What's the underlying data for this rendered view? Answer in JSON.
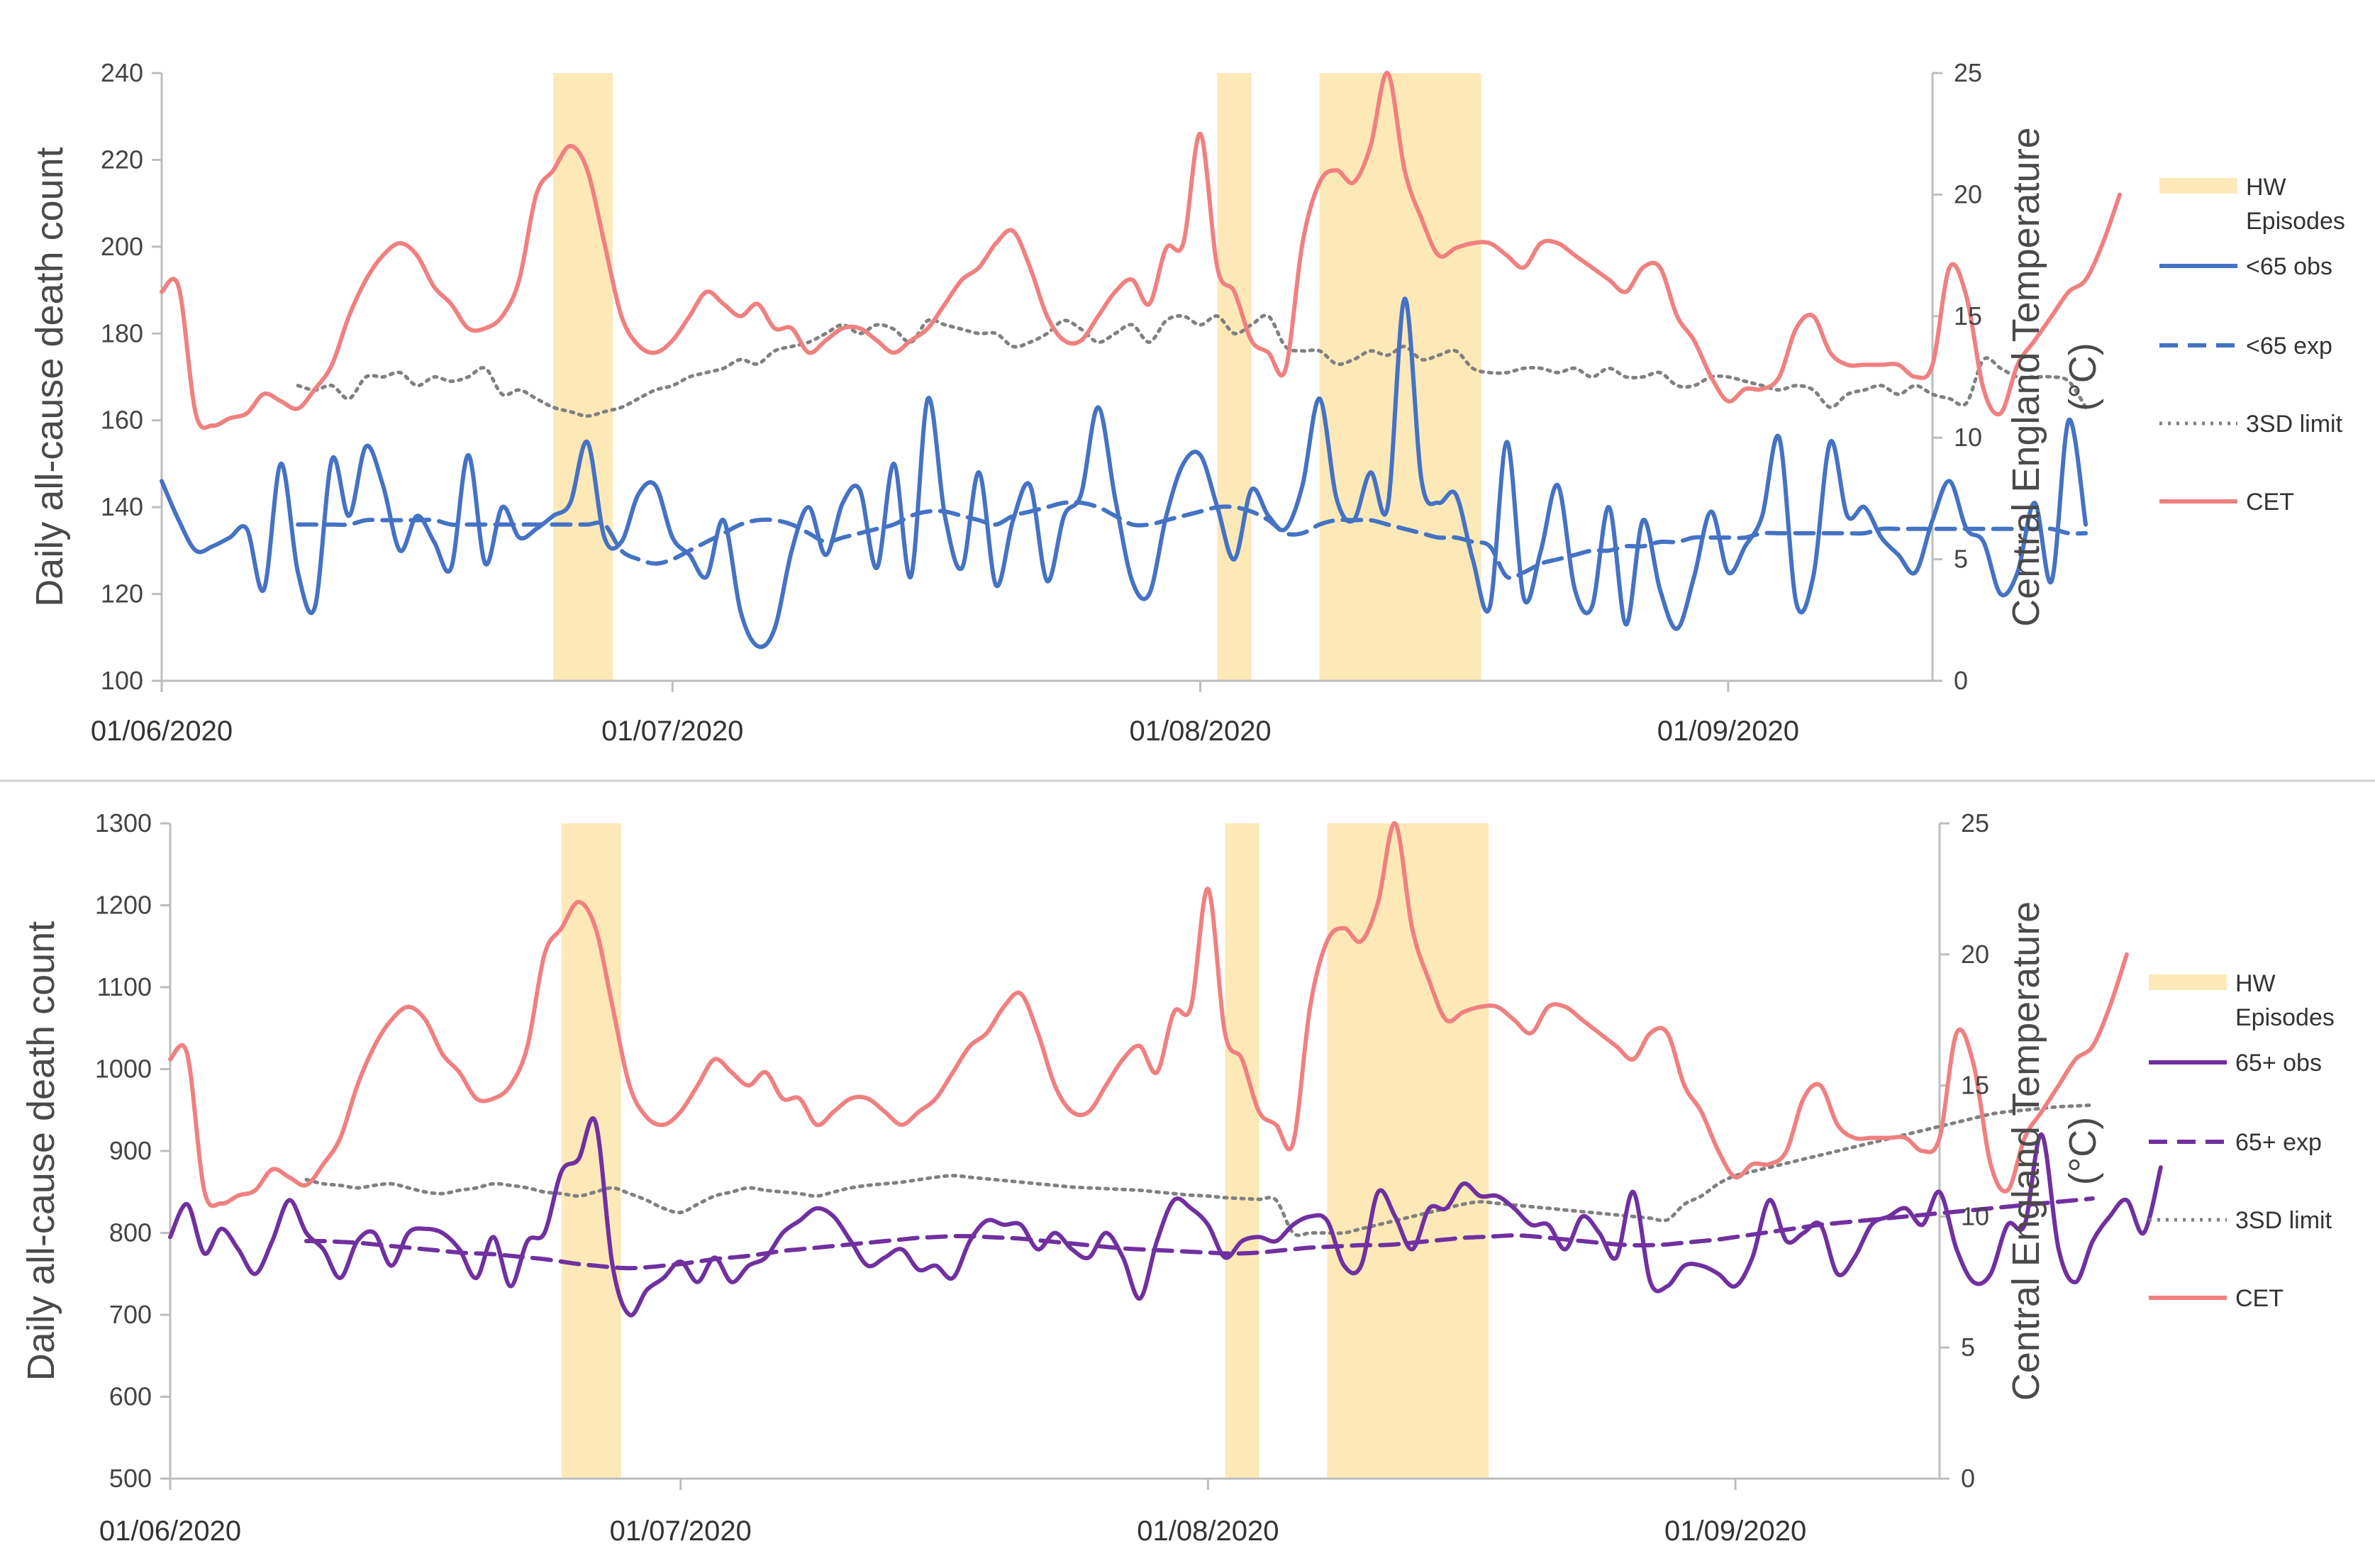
{
  "chart_data": [
    {
      "type": "line",
      "title": "",
      "x_date_range": [
        "01/06/2020",
        "13/09/2020"
      ],
      "x_tick_labels": [
        "01/06/2020",
        "01/07/2020",
        "01/08/2020",
        "01/09/2020"
      ],
      "ylabel": "Daily all-cause death count",
      "y2label": "Central England Temperature (°C)",
      "ylim": [
        100,
        240
      ],
      "yticks": [
        "100",
        "120",
        "140",
        "160",
        "180",
        "200",
        "220",
        "240"
      ],
      "y2lim": [
        0,
        25
      ],
      "y2ticks": [
        "0",
        "5",
        "10",
        "15",
        "20",
        "25"
      ],
      "hw_episodes": [
        [
          23,
          26.5
        ],
        [
          62,
          64
        ],
        [
          68,
          77.5
        ]
      ],
      "series": [
        {
          "name": "<65 obs",
          "axis": "left",
          "color": "#4472c4",
          "style": "solid",
          "values": [
            146,
            137,
            130,
            131,
            133,
            135,
            121,
            150,
            125,
            117,
            151,
            138,
            154,
            145,
            130,
            138,
            132,
            126,
            152,
            127,
            140,
            133,
            135,
            138,
            141,
            155,
            133,
            132,
            143,
            145,
            133,
            129,
            124,
            137,
            116,
            108,
            112,
            130,
            140,
            129,
            141,
            144,
            126,
            150,
            124,
            165,
            138,
            126,
            148,
            122,
            137,
            145,
            123,
            138,
            143,
            163,
            142,
            123,
            120,
            138,
            150,
            152,
            140,
            128,
            144,
            138,
            135,
            145,
            165,
            142,
            137,
            148,
            140,
            188,
            146,
            141,
            143,
            128,
            117,
            155,
            119,
            130,
            145,
            121,
            117,
            140,
            113,
            137,
            121,
            112,
            124,
            139,
            125,
            131,
            138,
            156,
            118,
            124,
            155,
            138,
            140,
            133,
            129,
            125,
            137,
            146,
            135,
            132,
            120,
            125,
            141,
            123,
            160,
            136
          ]
        },
        {
          "name": "<65 exp",
          "axis": "left",
          "color": "#4472c4",
          "style": "dashed",
          "values": [
            null,
            null,
            null,
            null,
            null,
            null,
            null,
            null,
            136,
            136,
            136,
            136,
            137,
            137,
            137,
            137,
            137,
            136,
            136,
            136,
            136,
            136,
            136,
            136,
            136,
            136,
            136,
            130,
            128,
            127,
            128,
            130,
            132,
            134,
            136,
            137,
            137,
            136,
            134,
            132,
            133,
            134,
            135,
            136,
            138,
            139,
            139,
            138,
            137,
            136,
            138,
            139,
            140,
            141,
            141,
            140,
            138,
            136,
            136,
            137,
            138,
            139,
            140,
            140,
            139,
            137,
            134,
            134,
            136,
            137,
            137,
            137,
            136,
            135,
            134,
            133,
            133,
            132,
            131,
            124,
            125,
            127,
            128,
            129,
            130,
            130,
            131,
            131,
            132,
            132,
            133,
            133,
            133,
            133,
            134,
            134,
            134,
            134,
            134,
            134,
            134,
            135,
            135,
            135,
            135,
            135,
            135,
            135,
            135,
            135,
            135,
            135,
            134,
            134
          ]
        },
        {
          "name": "3SD limit",
          "axis": "left",
          "color": "#808080",
          "style": "dotted",
          "values": [
            null,
            null,
            null,
            null,
            null,
            null,
            null,
            null,
            168,
            167,
            168,
            165,
            170,
            170,
            171,
            168,
            170,
            169,
            170,
            172,
            166,
            167,
            165,
            163,
            162,
            161,
            162,
            163,
            165,
            167,
            168,
            170,
            171,
            172,
            174,
            173,
            176,
            177,
            178,
            180,
            182,
            180,
            182,
            181,
            178,
            183,
            182,
            181,
            180,
            180,
            177,
            178,
            180,
            183,
            181,
            178,
            180,
            182,
            178,
            183,
            184,
            182,
            184,
            180,
            182,
            184,
            177,
            176,
            176,
            173,
            174,
            176,
            175,
            177,
            174,
            175,
            176,
            172,
            171,
            171,
            172,
            172,
            171,
            172,
            170,
            172,
            170,
            170,
            171,
            168,
            168,
            170,
            170,
            169,
            168,
            167,
            168,
            167,
            163,
            166,
            167,
            168,
            166,
            168,
            166,
            165,
            164,
            174,
            172,
            170,
            170,
            170,
            169,
            163
          ]
        },
        {
          "name": "CET",
          "axis": "right",
          "color": "#f08080",
          "style": "solid",
          "values": [
            16,
            16.2,
            11,
            10.5,
            10.8,
            11,
            11.8,
            11.5,
            11.2,
            12,
            13,
            15,
            16.5,
            17.5,
            18,
            17.5,
            16.2,
            15.5,
            14.5,
            14.5,
            15,
            16.5,
            20,
            21,
            22,
            21,
            18,
            15,
            13.8,
            13.5,
            14,
            15,
            16,
            15.5,
            15,
            15.5,
            14.5,
            14.5,
            13.5,
            14,
            14.5,
            14.5,
            14,
            13.5,
            14,
            14.5,
            15.5,
            16.5,
            17,
            18,
            18.5,
            17,
            15,
            14,
            14,
            15,
            16,
            16.5,
            15.5,
            17.8,
            18,
            22.5,
            17,
            16,
            14,
            13.5,
            12.8,
            18,
            20.5,
            21,
            20.5,
            22,
            25,
            21,
            19,
            17.5,
            17.8,
            18,
            18,
            17.5,
            17,
            18,
            18,
            17.5,
            17,
            16.5,
            16,
            17,
            17,
            15,
            14,
            12.5,
            11.5,
            12,
            12,
            12.5,
            14.5,
            15,
            13.5,
            13,
            13,
            13,
            13,
            12.5,
            13,
            17,
            15.8,
            12,
            11,
            13,
            14,
            15,
            16,
            16.5,
            18,
            20
          ]
        }
      ]
    },
    {
      "type": "line",
      "title": "",
      "x_date_range": [
        "01/06/2020",
        "13/09/2020"
      ],
      "x_tick_labels": [
        "01/06/2020",
        "01/07/2020",
        "01/08/2020",
        "01/09/2020"
      ],
      "ylabel": "Daily all-cause death count",
      "y2label": "Central England Temperature (°C)",
      "ylim": [
        500,
        1300
      ],
      "yticks": [
        "500",
        "600",
        "700",
        "800",
        "900",
        "1000",
        "1100",
        "1200",
        "1300"
      ],
      "y2lim": [
        0,
        25
      ],
      "y2ticks": [
        "0",
        "5",
        "10",
        "15",
        "20",
        "25"
      ],
      "hw_episodes": [
        [
          23,
          26.5
        ],
        [
          62,
          64
        ],
        [
          68,
          77.5
        ]
      ],
      "series": [
        {
          "name": "65+ obs",
          "axis": "left",
          "color": "#7030a0",
          "style": "solid",
          "values": [
            795,
            835,
            775,
            805,
            780,
            750,
            790,
            840,
            800,
            780,
            745,
            790,
            800,
            760,
            800,
            805,
            800,
            780,
            745,
            795,
            735,
            790,
            800,
            875,
            890,
            935,
            760,
            700,
            730,
            745,
            765,
            740,
            770,
            740,
            760,
            770,
            800,
            815,
            830,
            820,
            790,
            760,
            770,
            780,
            755,
            760,
            745,
            790,
            815,
            810,
            810,
            780,
            800,
            780,
            770,
            800,
            770,
            720,
            790,
            840,
            830,
            810,
            770,
            790,
            795,
            790,
            810,
            820,
            815,
            760,
            760,
            850,
            820,
            780,
            830,
            830,
            860,
            845,
            845,
            830,
            810,
            810,
            780,
            820,
            800,
            770,
            850,
            740,
            735,
            760,
            760,
            750,
            735,
            770,
            840,
            790,
            800,
            810,
            750,
            770,
            810,
            820,
            830,
            810,
            850,
            780,
            740,
            750,
            810,
            810,
            920,
            780,
            740,
            790,
            820,
            840,
            800,
            880
          ]
        },
        {
          "name": "65+ exp",
          "axis": "left",
          "color": "#7030a0",
          "style": "dashed",
          "values": [
            null,
            null,
            null,
            null,
            null,
            null,
            null,
            null,
            790,
            790,
            789,
            788,
            786,
            784,
            782,
            780,
            778,
            776,
            775,
            774,
            772,
            770,
            768,
            765,
            762,
            760,
            758,
            757,
            758,
            760,
            762,
            765,
            768,
            770,
            772,
            775,
            778,
            780,
            782,
            784,
            786,
            788,
            790,
            792,
            794,
            795,
            796,
            796,
            795,
            794,
            793,
            791,
            789,
            787,
            785,
            783,
            781,
            780,
            779,
            778,
            777,
            776,
            775,
            775,
            776,
            778,
            780,
            782,
            783,
            784,
            785,
            785,
            786,
            788,
            790,
            792,
            794,
            795,
            796,
            797,
            796,
            794,
            792,
            790,
            788,
            786,
            785,
            785,
            786,
            788,
            790,
            792,
            795,
            798,
            801,
            804,
            807,
            810,
            812,
            814,
            816,
            818,
            820,
            822,
            824,
            826,
            828,
            830,
            832,
            834,
            836,
            838,
            840,
            842
          ]
        },
        {
          "name": "3SD limit",
          "axis": "left",
          "color": "#808080",
          "style": "dotted",
          "values": [
            null,
            null,
            null,
            null,
            null,
            null,
            null,
            null,
            865,
            860,
            858,
            855,
            858,
            860,
            855,
            850,
            848,
            852,
            855,
            860,
            858,
            855,
            850,
            848,
            845,
            850,
            855,
            848,
            840,
            830,
            825,
            835,
            845,
            850,
            855,
            852,
            850,
            848,
            845,
            850,
            855,
            858,
            860,
            862,
            865,
            868,
            870,
            868,
            866,
            864,
            862,
            860,
            858,
            856,
            855,
            854,
            853,
            852,
            850,
            848,
            846,
            845,
            843,
            842,
            841,
            840,
            800,
            800,
            800,
            800,
            805,
            810,
            815,
            820,
            825,
            830,
            835,
            838,
            836,
            834,
            832,
            830,
            828,
            826,
            824,
            822,
            820,
            818,
            816,
            835,
            845,
            860,
            870,
            875,
            880,
            885,
            890,
            895,
            900,
            905,
            910,
            915,
            920,
            925,
            930,
            935,
            940,
            945,
            948,
            950,
            952,
            954,
            955,
            956
          ]
        },
        {
          "name": "CET",
          "axis": "right",
          "color": "#f08080",
          "style": "solid",
          "values": [
            16,
            16.2,
            11,
            10.5,
            10.8,
            11,
            11.8,
            11.5,
            11.2,
            12,
            13,
            15,
            16.5,
            17.5,
            18,
            17.5,
            16.2,
            15.5,
            14.5,
            14.5,
            15,
            16.5,
            20,
            21,
            22,
            21,
            18,
            15,
            13.8,
            13.5,
            14,
            15,
            16,
            15.5,
            15,
            15.5,
            14.5,
            14.5,
            13.5,
            14,
            14.5,
            14.5,
            14,
            13.5,
            14,
            14.5,
            15.5,
            16.5,
            17,
            18,
            18.5,
            17,
            15,
            14,
            14,
            15,
            16,
            16.5,
            15.5,
            17.8,
            18,
            22.5,
            17,
            16,
            14,
            13.5,
            12.8,
            18,
            20.5,
            21,
            20.5,
            22,
            25,
            21,
            19,
            17.5,
            17.8,
            18,
            18,
            17.5,
            17,
            18,
            18,
            17.5,
            17,
            16.5,
            16,
            17,
            17,
            15,
            14,
            12.5,
            11.5,
            12,
            12,
            12.5,
            14.5,
            15,
            13.5,
            13,
            13,
            13,
            13,
            12.5,
            13,
            17,
            15.8,
            12,
            11,
            13,
            14,
            15,
            16,
            16.5,
            18,
            20
          ]
        }
      ]
    }
  ],
  "legend_top": [
    {
      "label": "HW",
      "label2": "Episodes",
      "key": "hw"
    },
    {
      "label": "<65 obs",
      "key": "obs"
    },
    {
      "label": "<65 exp",
      "key": "exp"
    },
    {
      "label": "3SD limit",
      "key": "sd"
    },
    {
      "label": "CET",
      "key": "cet"
    }
  ],
  "legend_bottom": [
    {
      "label": "HW",
      "label2": "Episodes",
      "key": "hw"
    },
    {
      "label": "65+ obs",
      "key": "obs"
    },
    {
      "label": "65+ exp",
      "key": "exp"
    },
    {
      "label": "3SD limit",
      "key": "sd"
    },
    {
      "label": "CET",
      "key": "cet"
    }
  ],
  "colors": {
    "hw": "#fde9b8",
    "under65": "#4472c4",
    "over65": "#7030a0",
    "sd": "#808080",
    "cet": "#f08080"
  }
}
